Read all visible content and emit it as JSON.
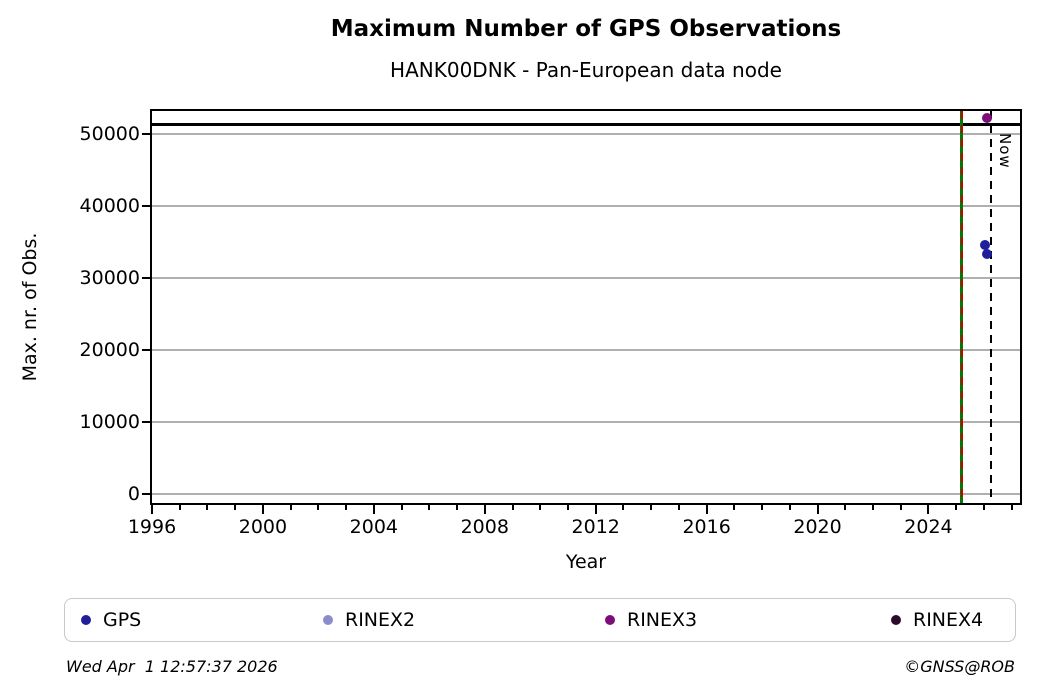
{
  "chart_data": {
    "type": "scatter",
    "title": "Maximum Number of GPS Observations",
    "subtitle": "HANK00DNK - Pan-European data node",
    "xlabel": "Year",
    "ylabel": "Max. nr. of Obs.",
    "xlim": [
      1996,
      2027.3
    ],
    "ylim": [
      -1200,
      53200
    ],
    "xticks_major": [
      1996,
      2000,
      2004,
      2008,
      2012,
      2016,
      2020,
      2024
    ],
    "xtick_minor_step": 1,
    "yticks": [
      0,
      10000,
      20000,
      30000,
      40000,
      50000
    ],
    "grid": "horizontal",
    "grid_color": "#b0b0b0",
    "series": [
      {
        "name": "GPS",
        "color": "#1f1f9c",
        "points": [
          {
            "x": 2026.05,
            "y": 34600
          },
          {
            "x": 2026.1,
            "y": 33400
          }
        ]
      },
      {
        "name": "RINEX2",
        "color": "#8c8ccb",
        "points": []
      },
      {
        "name": "RINEX3",
        "color": "#7c0e7c",
        "points": [
          {
            "x": 2026.1,
            "y": 52250
          }
        ]
      },
      {
        "name": "RINEX4",
        "color": "#2b0b2b",
        "points": []
      }
    ],
    "hlines": [
      {
        "y": 51300,
        "color": "#000000",
        "style": "solid",
        "width": 3
      }
    ],
    "vlines": [
      {
        "x": 2025.2,
        "color": "#007a00",
        "style": "solid",
        "width": 3,
        "label": ""
      },
      {
        "x": 2025.2,
        "color": "#cc0000",
        "style": "dashed",
        "width": 2,
        "label": ""
      },
      {
        "x": 2026.25,
        "color": "#000000",
        "style": "dashed",
        "width": 2,
        "label": "Now"
      }
    ],
    "legend": {
      "position": "bottom",
      "entries": [
        "GPS",
        "RINEX2",
        "RINEX3",
        "RINEX4"
      ]
    }
  },
  "footer": {
    "timestamp": "Wed Apr  1 12:57:37 2026",
    "credit": "©GNSS@ROB"
  }
}
